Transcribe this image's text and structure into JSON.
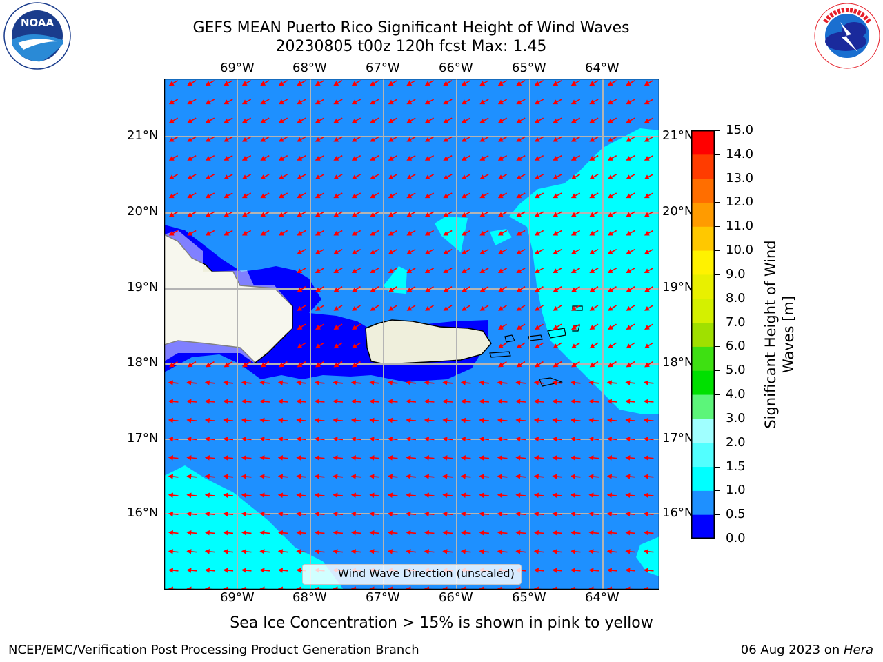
{
  "header": {
    "title_line1": "GEFS MEAN Puerto Rico Significant Height of Wind Waves",
    "title_line2": "20230805 t00z 120h fcst   Max: 1.45"
  },
  "logos": {
    "left": "noaa-logo",
    "right": "national-weather-service-logo"
  },
  "map": {
    "lon_labels": [
      "69°W",
      "68°W",
      "67°W",
      "66°W",
      "65°W",
      "64°W"
    ],
    "lat_labels": [
      "21°N",
      "20°N",
      "19°N",
      "18°N",
      "17°N",
      "16°N"
    ],
    "legend_label": "Wind Wave Direction (unscaled)",
    "colors": {
      "ocean": "#1e90ff",
      "shallow_blue": "#0000ff",
      "cyan": "#00ffff",
      "land": "#efefdc",
      "arrow": "#ff0000",
      "grid": "#b4b4b4"
    }
  },
  "colorbar": {
    "title_line1": "Significant Height of Wind",
    "title_line2": "Waves [m]",
    "ticks": [
      "0.0",
      "0.5",
      "1.0",
      "1.5",
      "2.0",
      "3.0",
      "4.0",
      "5.0",
      "6.0",
      "7.0",
      "8.0",
      "9.0",
      "10.0",
      "11.0",
      "12.0",
      "13.0",
      "14.0",
      "15.0"
    ],
    "colors": [
      "#0000ff",
      "#1e90ff",
      "#00ffff",
      "#52ffff",
      "#a0ffff",
      "#5cf57a",
      "#00e000",
      "#3ee012",
      "#a0e000",
      "#d4f000",
      "#e8f000",
      "#fff200",
      "#ffc800",
      "#ff9b00",
      "#ff6e00",
      "#ff3c00",
      "#ff0000"
    ]
  },
  "caption": "Sea Ice Concentration > 15% is shown in pink to yellow",
  "footer": {
    "left": "NCEP/EMC/Verification Post Processing Product Generation Branch",
    "right_date": "06 Aug 2023 on ",
    "right_machine": "Hera"
  }
}
